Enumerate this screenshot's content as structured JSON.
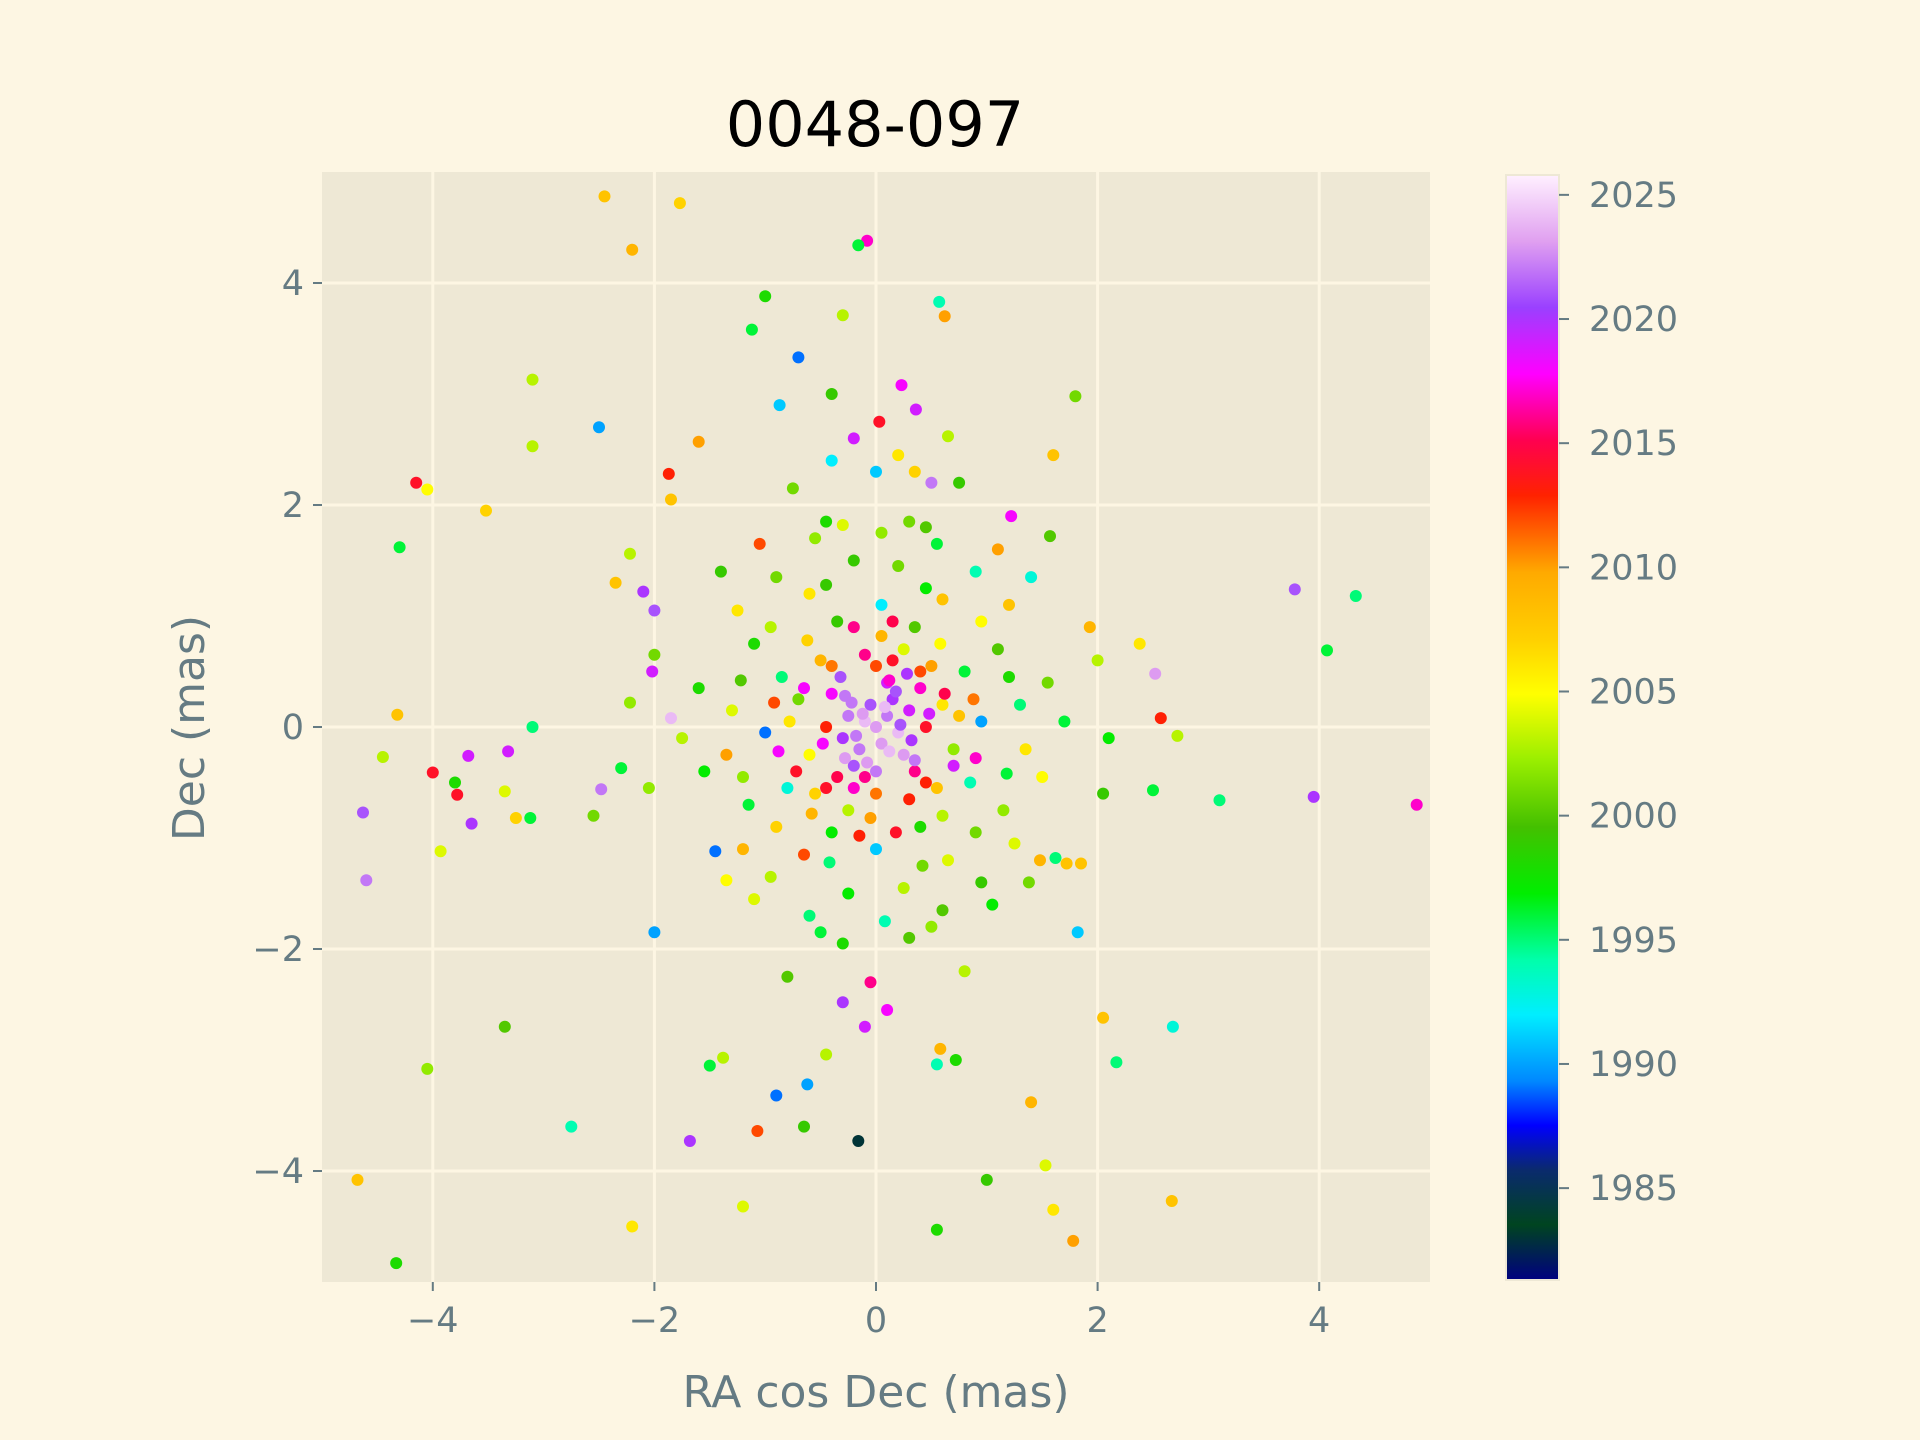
{
  "chart_data": {
    "type": "scatter",
    "title": "0048-097",
    "xlabel": "RA cos Dec (mas)",
    "ylabel": "Dec (mas)",
    "xlim": [
      -5,
      5
    ],
    "ylim": [
      -5,
      5
    ],
    "xticks": [
      -4,
      -2,
      0,
      2,
      4
    ],
    "yticks": [
      -4,
      -2,
      0,
      2,
      4
    ],
    "xtick_labels": [
      "−4",
      "−2",
      "0",
      "2",
      "4"
    ],
    "ytick_labels": [
      "−4",
      "−2",
      "0",
      "2",
      "4"
    ],
    "grid": true,
    "colorbar": {
      "label": "",
      "range": [
        1981.3,
        2025.8
      ],
      "ticks": [
        1985,
        1990,
        1995,
        2000,
        2005,
        2010,
        2015,
        2020,
        2025
      ],
      "tick_labels": [
        "1985",
        "1990",
        "1995",
        "2000",
        "2005",
        "2010",
        "2015",
        "2020",
        "2025"
      ],
      "colormap": "gist_ncar"
    },
    "colors": {
      "figure_bg": "#fdf6e3",
      "axes_bg": "#eee8d5",
      "grid": "#fdf6e3",
      "tick_text": "#657b83",
      "title_text": "#000000"
    },
    "points": [
      [
        -0.16,
        -3.73,
        1983.0
      ],
      [
        -2.45,
        4.78,
        2008.0
      ],
      [
        -1.77,
        4.72,
        2007.0
      ],
      [
        -2.2,
        4.3,
        2009.0
      ],
      [
        -0.08,
        4.38,
        2017.0
      ],
      [
        -0.16,
        4.34,
        1996.0
      ],
      [
        -1.0,
        3.88,
        1998.0
      ],
      [
        0.57,
        3.83,
        1994.0
      ],
      [
        -1.12,
        3.58,
        1996.0
      ],
      [
        -0.3,
        3.71,
        2003.0
      ],
      [
        0.62,
        3.7,
        2010.0
      ],
      [
        -0.7,
        3.33,
        1989.0
      ],
      [
        -3.1,
        3.13,
        2003.0
      ],
      [
        -2.5,
        2.7,
        1990.0
      ],
      [
        -3.1,
        2.53,
        2003.0
      ],
      [
        -0.4,
        3.0,
        1999.0
      ],
      [
        0.23,
        3.08,
        2018.0
      ],
      [
        -0.87,
        2.9,
        1991.0
      ],
      [
        0.36,
        2.86,
        2019.0
      ],
      [
        1.8,
        2.98,
        2001.0
      ],
      [
        0.03,
        2.75,
        2014.0
      ],
      [
        -0.2,
        2.6,
        2019.0
      ],
      [
        0.65,
        2.62,
        2003.0
      ],
      [
        -1.6,
        2.57,
        2010.0
      ],
      [
        1.6,
        2.45,
        2008.0
      ],
      [
        -4.15,
        2.2,
        2014.0
      ],
      [
        -4.05,
        2.14,
        2005.0
      ],
      [
        -1.87,
        2.28,
        2013.0
      ],
      [
        -1.85,
        2.05,
        2008.0
      ],
      [
        -3.52,
        1.95,
        2007.0
      ],
      [
        0.5,
        2.2,
        2022.0
      ],
      [
        1.22,
        1.9,
        2018.0
      ],
      [
        -4.3,
        1.62,
        1996.0
      ],
      [
        -2.22,
        1.56,
        2003.0
      ],
      [
        1.57,
        1.72,
        2000.0
      ],
      [
        -2.35,
        1.3,
        2008.0
      ],
      [
        -2.1,
        1.22,
        2020.0
      ],
      [
        -2.0,
        1.05,
        2021.0
      ],
      [
        3.78,
        1.24,
        2021.0
      ],
      [
        4.33,
        1.18,
        1995.0
      ],
      [
        1.93,
        0.9,
        2009.0
      ],
      [
        2.38,
        0.75,
        2006.0
      ],
      [
        4.07,
        0.69,
        1996.0
      ],
      [
        -2.02,
        0.5,
        2019.0
      ],
      [
        2.52,
        0.48,
        2023.0
      ],
      [
        -2.22,
        0.22,
        2002.0
      ],
      [
        -1.85,
        0.08,
        2024.0
      ],
      [
        -4.32,
        0.11,
        2008.0
      ],
      [
        -3.1,
        0.0,
        1995.0
      ],
      [
        2.57,
        0.08,
        2013.0
      ],
      [
        2.1,
        -0.1,
        1997.0
      ],
      [
        2.72,
        -0.08,
        2003.0
      ],
      [
        -4.45,
        -0.27,
        2003.0
      ],
      [
        -3.32,
        -0.22,
        2019.0
      ],
      [
        -3.68,
        -0.26,
        2019.0
      ],
      [
        -4.0,
        -0.41,
        2014.0
      ],
      [
        -3.8,
        -0.5,
        1998.0
      ],
      [
        -3.78,
        -0.61,
        2014.0
      ],
      [
        -3.35,
        -0.58,
        2004.0
      ],
      [
        -2.48,
        -0.56,
        2022.0
      ],
      [
        -2.3,
        -0.37,
        1996.0
      ],
      [
        4.88,
        -0.7,
        2017.0
      ],
      [
        3.95,
        -0.63,
        2020.0
      ],
      [
        3.1,
        -0.66,
        1995.0
      ],
      [
        2.5,
        -0.57,
        1996.0
      ],
      [
        -4.63,
        -0.77,
        2021.0
      ],
      [
        -3.65,
        -0.87,
        2020.0
      ],
      [
        -3.25,
        -0.82,
        2007.0
      ],
      [
        -3.12,
        -0.82,
        1996.0
      ],
      [
        -3.93,
        -1.12,
        2004.0
      ],
      [
        -4.6,
        -1.38,
        2022.0
      ],
      [
        -2.55,
        -0.8,
        2001.0
      ],
      [
        -1.45,
        -1.12,
        1989.0
      ],
      [
        -2.0,
        -1.85,
        1990.0
      ],
      [
        1.48,
        -1.2,
        2009.0
      ],
      [
        1.72,
        -1.23,
        2008.0
      ],
      [
        1.85,
        -1.23,
        2008.0
      ],
      [
        1.62,
        -1.18,
        1995.0
      ],
      [
        1.82,
        -1.85,
        1991.0
      ],
      [
        2.05,
        -2.62,
        2008.0
      ],
      [
        2.68,
        -2.7,
        1993.0
      ],
      [
        2.17,
        -3.02,
        1995.0
      ],
      [
        -3.35,
        -2.7,
        2000.0
      ],
      [
        -4.05,
        -3.08,
        2002.0
      ],
      [
        -2.75,
        -3.6,
        1994.0
      ],
      [
        -1.5,
        -3.05,
        1996.0
      ],
      [
        -1.38,
        -2.98,
        2003.0
      ],
      [
        -0.9,
        -3.32,
        1989.0
      ],
      [
        -0.62,
        -3.22,
        1990.0
      ],
      [
        -0.45,
        -2.95,
        2003.0
      ],
      [
        -1.07,
        -3.64,
        2012.0
      ],
      [
        -1.68,
        -3.73,
        2020.0
      ],
      [
        -0.65,
        -3.6,
        1999.0
      ],
      [
        0.55,
        -3.04,
        1994.0
      ],
      [
        0.72,
        -3.0,
        1998.0
      ],
      [
        1.4,
        -3.38,
        2009.0
      ],
      [
        0.58,
        -2.9,
        2009.0
      ],
      [
        1.53,
        -3.95,
        2004.0
      ],
      [
        1.6,
        -4.35,
        2006.0
      ],
      [
        1.0,
        -4.08,
        1999.0
      ],
      [
        0.55,
        -4.53,
        1998.0
      ],
      [
        1.78,
        -4.63,
        2010.0
      ],
      [
        2.67,
        -4.27,
        2008.0
      ],
      [
        -4.68,
        -4.08,
        2008.0
      ],
      [
        -4.33,
        -4.83,
        1998.0
      ],
      [
        -2.2,
        -4.5,
        2006.0
      ],
      [
        -1.2,
        -4.32,
        2004.0
      ],
      [
        0.0,
        0.0,
        2023.0
      ],
      [
        0.1,
        0.1,
        2022.0
      ],
      [
        -0.1,
        0.05,
        2024.0
      ],
      [
        0.05,
        -0.15,
        2023.0
      ],
      [
        -0.15,
        -0.2,
        2022.0
      ],
      [
        0.2,
        -0.05,
        2024.0
      ],
      [
        -0.05,
        0.2,
        2021.0
      ],
      [
        0.15,
        0.25,
        2020.0
      ],
      [
        -0.25,
        0.1,
        2022.0
      ],
      [
        0.25,
        -0.25,
        2023.0
      ],
      [
        -0.2,
        -0.35,
        2021.0
      ],
      [
        0.3,
        0.15,
        2019.0
      ],
      [
        -0.3,
        -0.1,
        2020.0
      ],
      [
        0.0,
        -0.4,
        2022.0
      ],
      [
        0.1,
        0.4,
        2019.0
      ],
      [
        -0.4,
        0.3,
        2018.0
      ],
      [
        0.4,
        0.35,
        2017.0
      ],
      [
        0.35,
        -0.4,
        2016.0
      ],
      [
        -0.35,
        -0.45,
        2015.0
      ],
      [
        0.45,
        0.0,
        2014.0
      ],
      [
        -0.45,
        0.0,
        2013.0
      ],
      [
        0.0,
        0.55,
        2012.0
      ],
      [
        0.0,
        -0.6,
        2011.0
      ],
      [
        0.5,
        0.55,
        2010.0
      ],
      [
        -0.5,
        0.6,
        2009.0
      ],
      [
        0.55,
        -0.55,
        2008.0
      ],
      [
        -0.55,
        -0.6,
        2007.0
      ],
      [
        0.6,
        0.2,
        2006.0
      ],
      [
        -0.6,
        -0.25,
        2005.0
      ],
      [
        0.25,
        0.7,
        2004.0
      ],
      [
        -0.25,
        -0.75,
        2003.0
      ],
      [
        0.7,
        -0.2,
        2002.0
      ],
      [
        -0.7,
        0.25,
        2001.0
      ],
      [
        0.35,
        0.9,
        2000.0
      ],
      [
        -0.35,
        0.95,
        1999.0
      ],
      [
        0.4,
        -0.9,
        1998.0
      ],
      [
        -0.4,
        -0.95,
        1997.0
      ],
      [
        0.8,
        0.5,
        1996.0
      ],
      [
        -0.85,
        0.45,
        1995.0
      ],
      [
        0.85,
        -0.5,
        1994.0
      ],
      [
        -0.8,
        -0.55,
        1993.0
      ],
      [
        0.05,
        1.1,
        1992.0
      ],
      [
        0.0,
        -1.1,
        1991.0
      ],
      [
        0.95,
        0.05,
        1990.0
      ],
      [
        -1.0,
        -0.05,
        1989.0
      ],
      [
        0.6,
        1.15,
        2008.0
      ],
      [
        -0.6,
        1.2,
        2006.0
      ],
      [
        0.65,
        -1.2,
        2004.0
      ],
      [
        -0.65,
        -1.15,
        2012.0
      ],
      [
        1.1,
        0.7,
        2000.0
      ],
      [
        -1.1,
        0.75,
        1998.0
      ],
      [
        1.15,
        -0.75,
        2002.0
      ],
      [
        -1.15,
        -0.7,
        1996.0
      ],
      [
        0.2,
        1.45,
        2001.0
      ],
      [
        -0.2,
        1.5,
        1999.0
      ],
      [
        0.25,
        -1.45,
        2003.0
      ],
      [
        -0.25,
        -1.5,
        1997.0
      ],
      [
        1.3,
        0.2,
        1995.0
      ],
      [
        -1.3,
        0.15,
        2004.0
      ],
      [
        1.35,
        -0.2,
        2006.0
      ],
      [
        -1.35,
        -0.25,
        2010.0
      ],
      [
        0.9,
        1.4,
        1994.0
      ],
      [
        -0.9,
        1.35,
        2001.0
      ],
      [
        0.95,
        -1.4,
        1999.0
      ],
      [
        -0.95,
        -1.35,
        2003.0
      ],
      [
        0.45,
        1.8,
        2000.0
      ],
      [
        -0.45,
        1.85,
        1998.0
      ],
      [
        0.5,
        -1.8,
        2002.0
      ],
      [
        -0.5,
        -1.85,
        1996.0
      ],
      [
        0.15,
        0.6,
        2014.0
      ],
      [
        -0.1,
        0.65,
        2016.0
      ],
      [
        0.3,
        -0.65,
        2013.0
      ],
      [
        -0.2,
        -0.55,
        2017.0
      ],
      [
        0.62,
        0.3,
        2015.0
      ],
      [
        -0.65,
        0.35,
        2018.0
      ],
      [
        0.7,
        -0.35,
        2019.0
      ],
      [
        -0.72,
        -0.4,
        2014.0
      ],
      [
        0.18,
        0.32,
        2021.0
      ],
      [
        -0.28,
        0.28,
        2022.0
      ],
      [
        0.32,
        -0.12,
        2020.0
      ],
      [
        -0.08,
        -0.32,
        2023.0
      ],
      [
        0.08,
        0.18,
        2024.0
      ],
      [
        -0.18,
        -0.08,
        2022.0
      ],
      [
        0.22,
        0.02,
        2021.0
      ],
      [
        -0.12,
        0.12,
        2023.0
      ],
      [
        1.55,
        0.4,
        2001.0
      ],
      [
        -1.6,
        0.35,
        1998.0
      ],
      [
        1.5,
        -0.45,
        2005.0
      ],
      [
        -1.55,
        -0.4,
        1997.0
      ],
      [
        0.55,
        1.65,
        1996.0
      ],
      [
        -0.55,
        1.7,
        2002.0
      ],
      [
        0.6,
        -1.65,
        2000.0
      ],
      [
        -0.6,
        -1.7,
        1995.0
      ],
      [
        1.2,
        1.1,
        2008.0
      ],
      [
        -1.25,
        1.05,
        2006.0
      ],
      [
        1.25,
        -1.05,
        2004.0
      ],
      [
        -1.2,
        -1.1,
        2009.0
      ],
      [
        0.75,
        2.2,
        1999.0
      ],
      [
        -0.75,
        2.15,
        2001.0
      ],
      [
        0.8,
        -2.2,
        2003.0
      ],
      [
        -0.8,
        -2.25,
        2000.0
      ],
      [
        2.0,
        0.6,
        2003.0
      ],
      [
        -2.0,
        0.65,
        2001.0
      ],
      [
        2.05,
        -0.6,
        1999.0
      ],
      [
        -2.05,
        -0.55,
        2002.0
      ],
      [
        1.1,
        1.6,
        2010.0
      ],
      [
        -1.05,
        1.65,
        2012.0
      ],
      [
        1.05,
        -1.6,
        1997.0
      ],
      [
        -1.1,
        -1.55,
        2004.0
      ],
      [
        0.0,
        2.3,
        1991.0
      ],
      [
        -0.05,
        -2.3,
        2016.0
      ],
      [
        0.1,
        -2.55,
        2018.0
      ],
      [
        -0.3,
        -2.48,
        2020.0
      ],
      [
        -0.1,
        -2.7,
        2019.0
      ],
      [
        0.2,
        2.45,
        2006.0
      ],
      [
        -0.4,
        2.4,
        1992.0
      ],
      [
        0.35,
        2.3,
        2007.0
      ],
      [
        0.3,
        1.85,
        2001.0
      ],
      [
        -0.3,
        1.82,
        2004.0
      ],
      [
        0.3,
        -1.9,
        2000.0
      ],
      [
        -0.3,
        -1.95,
        1998.0
      ],
      [
        0.95,
        0.95,
        2005.0
      ],
      [
        -0.95,
        0.9,
        2003.0
      ],
      [
        0.9,
        -0.95,
        2001.0
      ],
      [
        -0.9,
        -0.9,
        2007.0
      ],
      [
        0.4,
        0.5,
        2012.0
      ],
      [
        -0.4,
        0.55,
        2011.0
      ],
      [
        0.45,
        -0.5,
        2013.0
      ],
      [
        -0.45,
        -0.55,
        2014.0
      ],
      [
        0.75,
        0.1,
        2008.0
      ],
      [
        -0.78,
        0.05,
        2006.0
      ],
      [
        0.05,
        0.82,
        2009.0
      ],
      [
        -0.05,
        -0.82,
        2010.0
      ],
      [
        1.2,
        0.45,
        1998.0
      ],
      [
        -1.22,
        0.42,
        2000.0
      ],
      [
        1.18,
        -0.42,
        1996.0
      ],
      [
        -1.2,
        -0.45,
        2002.0
      ],
      [
        0.45,
        1.25,
        1997.0
      ],
      [
        -0.45,
        1.28,
        1999.0
      ],
      [
        0.42,
        -1.25,
        2001.0
      ],
      [
        -0.42,
        -1.22,
        1995.0
      ],
      [
        1.7,
        0.05,
        1996.0
      ],
      [
        -1.75,
        -0.1,
        2003.0
      ],
      [
        0.05,
        1.75,
        2002.0
      ],
      [
        0.08,
        -1.75,
        1994.0
      ],
      [
        1.4,
        1.35,
        1993.0
      ],
      [
        -1.4,
        1.4,
        1999.0
      ],
      [
        1.38,
        -1.4,
        2001.0
      ],
      [
        -1.35,
        -1.38,
        2005.0
      ],
      [
        0.15,
        0.95,
        2015.0
      ],
      [
        -0.2,
        0.9,
        2016.0
      ],
      [
        0.18,
        -0.95,
        2014.0
      ],
      [
        -0.15,
        -0.98,
        2013.0
      ],
      [
        0.88,
        0.25,
        2011.0
      ],
      [
        -0.92,
        0.22,
        2012.0
      ],
      [
        0.9,
        -0.28,
        2017.0
      ],
      [
        -0.88,
        -0.22,
        2018.0
      ],
      [
        0.58,
        0.75,
        2005.0
      ],
      [
        -0.62,
        0.78,
        2007.0
      ],
      [
        0.6,
        -0.8,
        2003.0
      ],
      [
        -0.58,
        -0.78,
        2009.0
      ],
      [
        0.28,
        0.48,
        2020.0
      ],
      [
        -0.32,
        0.45,
        2021.0
      ],
      [
        0.35,
        -0.3,
        2022.0
      ],
      [
        -0.28,
        -0.28,
        2023.0
      ],
      [
        0.12,
        -0.22,
        2024.0
      ],
      [
        -0.22,
        0.22,
        2022.0
      ],
      [
        0.48,
        0.12,
        2019.0
      ],
      [
        -0.48,
        -0.15,
        2018.0
      ],
      [
        0.12,
        0.42,
        2017.0
      ],
      [
        -0.1,
        -0.45,
        2016.0
      ]
    ]
  }
}
